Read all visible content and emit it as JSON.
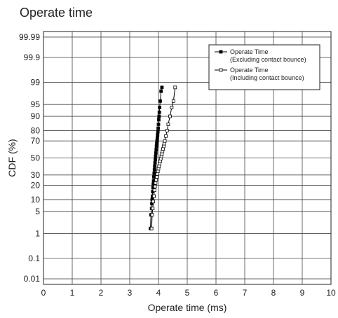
{
  "chart_data": {
    "type": "scatter",
    "title": "Operate time",
    "xlabel": "Operate time (ms)",
    "ylabel": "CDF (%)",
    "xlim": [
      0,
      10
    ],
    "y_scale": "normal-probability",
    "x_ticks": [
      "0",
      "1",
      "2",
      "3",
      "4",
      "5",
      "6",
      "7",
      "8",
      "9",
      "10"
    ],
    "y_ticks": [
      {
        "label": "99.99",
        "value": 99.99
      },
      {
        "label": "99.9",
        "value": 99.9
      },
      {
        "label": "99",
        "value": 99
      },
      {
        "label": "95",
        "value": 95
      },
      {
        "label": "90",
        "value": 90
      },
      {
        "label": "80",
        "value": 80
      },
      {
        "label": "70",
        "value": 70
      },
      {
        "label": "50",
        "value": 50
      },
      {
        "label": "30",
        "value": 30
      },
      {
        "label": "20",
        "value": 20
      },
      {
        "label": "10",
        "value": 10
      },
      {
        "label": "5",
        "value": 5
      },
      {
        "label": "1",
        "value": 1
      },
      {
        "label": "0.1",
        "value": 0.1
      },
      {
        "label": "0.01",
        "value": 0.01
      }
    ],
    "grid": true,
    "legend_position": "top-right",
    "series": [
      {
        "name": "Operate Time",
        "name_line2": "(Excluding contact bounce)",
        "marker": "filled-square",
        "color": "#000000",
        "x": [
          3.72,
          3.74,
          3.76,
          3.77,
          3.78,
          3.79,
          3.8,
          3.81,
          3.82,
          3.83,
          3.84,
          3.85,
          3.86,
          3.87,
          3.88,
          3.89,
          3.9,
          3.91,
          3.92,
          3.93,
          3.94,
          3.95,
          3.96,
          3.97,
          3.98,
          3.99,
          4.0,
          4.01,
          4.02,
          4.03,
          4.04,
          4.06,
          4.09,
          4.12
        ],
        "y": [
          1.5,
          4,
          6,
          8,
          10,
          12,
          15,
          18,
          21,
          24,
          28,
          32,
          36,
          40,
          44,
          48,
          52,
          56,
          60,
          64,
          67,
          70,
          73,
          76,
          79,
          82,
          85,
          88,
          90,
          92,
          94,
          96,
          98,
          98.5
        ]
      },
      {
        "name": "Operate Time",
        "name_line2": "(Including contact bounce)",
        "marker": "open-square",
        "color": "#000000",
        "x": [
          3.76,
          3.78,
          3.8,
          3.82,
          3.84,
          3.86,
          3.88,
          3.9,
          3.92,
          3.94,
          3.96,
          3.98,
          4.0,
          4.02,
          4.04,
          4.06,
          4.08,
          4.1,
          4.12,
          4.14,
          4.16,
          4.18,
          4.2,
          4.22,
          4.26,
          4.3,
          4.34,
          4.4,
          4.46,
          4.52,
          4.58
        ],
        "y": [
          1.5,
          4,
          6,
          9,
          12,
          16,
          19,
          22,
          25,
          28,
          31,
          34,
          37,
          40,
          43,
          46,
          49,
          52,
          55,
          58,
          61,
          64,
          67,
          70,
          75,
          80,
          85,
          90,
          94,
          96,
          98.5
        ]
      }
    ]
  }
}
